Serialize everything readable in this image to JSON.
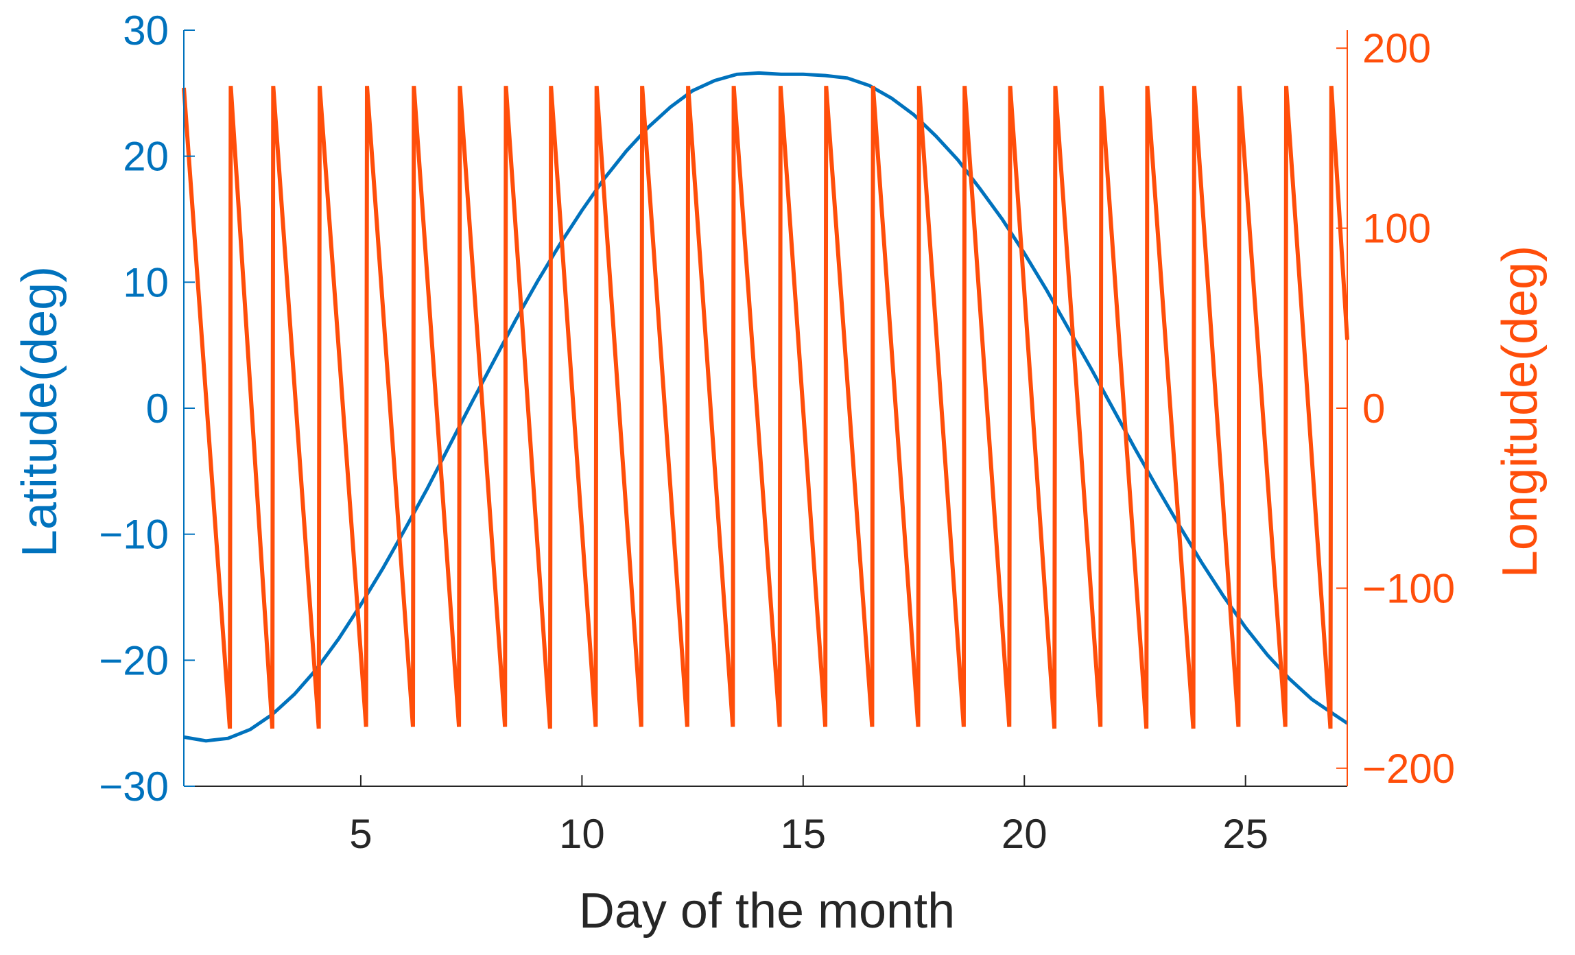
{
  "chart_data": {
    "type": "line",
    "xlabel": "Day of the month",
    "ylabel_left": "Latitude(deg)",
    "ylabel_right": "Longitude(deg)",
    "xlim": [
      1,
      27.3
    ],
    "ylim_left": [
      -30,
      30
    ],
    "ylim_right": [
      -210,
      210
    ],
    "x_ticks": [
      5,
      10,
      15,
      20,
      25
    ],
    "y_ticks_left": [
      -30,
      -20,
      -10,
      0,
      10,
      20,
      30
    ],
    "y_ticks_right": [
      -200,
      -100,
      0,
      100,
      200
    ],
    "colors": {
      "latitude": "#0072BD",
      "longitude": "#FF4E0A",
      "xaxis": "#262626"
    },
    "series": [
      {
        "axis": "left",
        "color": "#0072BD",
        "x": [
          1.0,
          1.5,
          2.0,
          2.5,
          3.0,
          3.5,
          4.0,
          4.5,
          5.0,
          5.5,
          6.0,
          6.5,
          7.0,
          7.5,
          8.0,
          8.5,
          9.0,
          9.5,
          10.0,
          10.5,
          11.0,
          11.5,
          12.0,
          12.5,
          13.0,
          13.5,
          14.0,
          14.5,
          15.0,
          15.5,
          16.0,
          16.5,
          17.0,
          17.5,
          18.0,
          18.5,
          19.0,
          19.5,
          20.0,
          20.5,
          21.0,
          21.5,
          22.0,
          22.5,
          23.0,
          23.5,
          24.0,
          24.5,
          25.0,
          25.5,
          26.0,
          26.5,
          27.0,
          27.3
        ],
        "y": [
          -26.1,
          -26.4,
          -26.2,
          -25.5,
          -24.3,
          -22.7,
          -20.7,
          -18.3,
          -15.6,
          -12.7,
          -9.6,
          -6.4,
          -3.0,
          0.4,
          3.7,
          7.0,
          10.1,
          13.0,
          15.7,
          18.2,
          20.4,
          22.3,
          23.9,
          25.2,
          26.0,
          26.5,
          26.6,
          26.5,
          26.5,
          26.4,
          26.2,
          25.6,
          24.6,
          23.3,
          21.6,
          19.7,
          17.4,
          15.0,
          12.3,
          9.4,
          6.3,
          3.2,
          0.0,
          -3.2,
          -6.3,
          -9.3,
          -12.2,
          -14.9,
          -17.4,
          -19.6,
          -21.5,
          -23.1,
          -24.3,
          -25.0
        ]
      },
      {
        "axis": "right",
        "color": "#FF4E0A",
        "x": [
          1.0,
          2.04,
          2.06,
          3.0,
          3.02,
          4.05,
          4.07,
          5.12,
          5.14,
          6.18,
          6.2,
          7.22,
          7.24,
          8.26,
          8.28,
          9.28,
          9.3,
          10.31,
          10.33,
          11.34,
          11.36,
          12.38,
          12.4,
          13.41,
          13.43,
          14.47,
          14.49,
          15.5,
          15.52,
          16.56,
          16.58,
          17.6,
          17.62,
          18.63,
          18.65,
          19.66,
          19.68,
          20.68,
          20.7,
          21.72,
          21.74,
          22.76,
          22.78,
          23.82,
          23.84,
          24.84,
          24.86,
          25.9,
          25.92,
          26.92,
          26.94,
          27.3
        ],
        "y": [
          178,
          -178,
          179,
          -178,
          179,
          -178,
          179,
          -177,
          179,
          -177,
          179,
          -177,
          179,
          -177,
          179,
          -178,
          179,
          -177,
          179,
          -177,
          179,
          -177,
          179,
          -177,
          179,
          -177,
          179,
          -177,
          179,
          -177,
          179,
          -177,
          179,
          -177,
          179,
          -177,
          179,
          -178,
          179,
          -177,
          179,
          -178,
          179,
          -178,
          179,
          -177,
          179,
          -177,
          179,
          -178,
          179,
          38
        ]
      }
    ]
  }
}
